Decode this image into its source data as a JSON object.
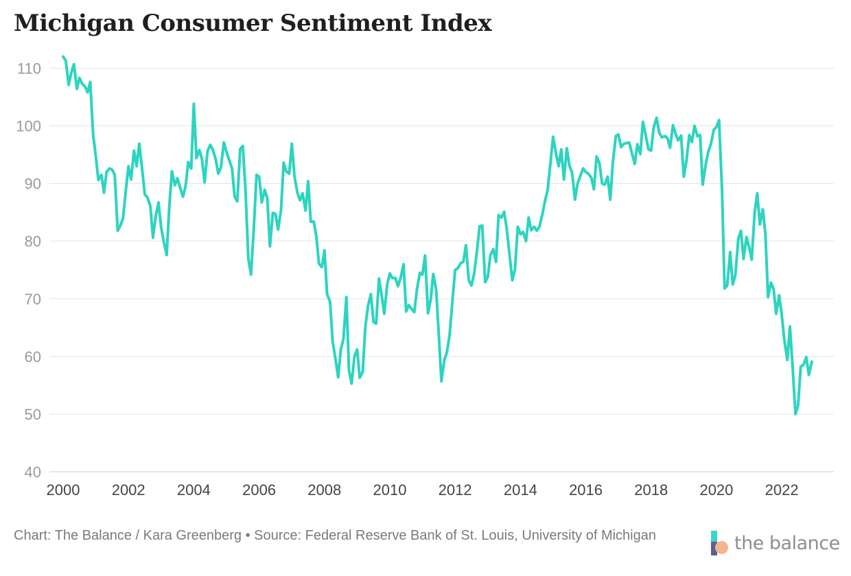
{
  "chart_data": {
    "type": "line",
    "title": "Michigan Consumer Sentiment Index",
    "xlabel": "",
    "ylabel": "",
    "xlim": [
      2000,
      2023.3
    ],
    "ylim": [
      40,
      112
    ],
    "x_ticks": [
      2000,
      2002,
      2004,
      2006,
      2008,
      2010,
      2012,
      2014,
      2016,
      2018,
      2020,
      2022
    ],
    "y_ticks": [
      40,
      50,
      60,
      70,
      80,
      90,
      100,
      110
    ],
    "grid": true,
    "series": [
      {
        "name": "Michigan Consumer Sentiment Index",
        "color": "#2dd4bf",
        "x": [
          2000.0,
          2000.08,
          2000.17,
          2000.25,
          2000.33,
          2000.42,
          2000.5,
          2000.58,
          2000.67,
          2000.75,
          2000.83,
          2000.92,
          2001.0,
          2001.08,
          2001.17,
          2001.25,
          2001.33,
          2001.42,
          2001.5,
          2001.58,
          2001.67,
          2001.75,
          2001.83,
          2001.92,
          2002.0,
          2002.08,
          2002.17,
          2002.25,
          2002.33,
          2002.42,
          2002.5,
          2002.58,
          2002.67,
          2002.75,
          2002.83,
          2002.92,
          2003.0,
          2003.08,
          2003.17,
          2003.25,
          2003.33,
          2003.42,
          2003.5,
          2003.58,
          2003.67,
          2003.75,
          2003.83,
          2003.92,
          2004.0,
          2004.08,
          2004.17,
          2004.25,
          2004.33,
          2004.42,
          2004.5,
          2004.58,
          2004.67,
          2004.75,
          2004.83,
          2004.92,
          2005.0,
          2005.08,
          2005.17,
          2005.25,
          2005.33,
          2005.42,
          2005.5,
          2005.58,
          2005.67,
          2005.75,
          2005.83,
          2005.92,
          2006.0,
          2006.08,
          2006.17,
          2006.25,
          2006.33,
          2006.42,
          2006.5,
          2006.58,
          2006.67,
          2006.75,
          2006.83,
          2006.92,
          2007.0,
          2007.08,
          2007.17,
          2007.25,
          2007.33,
          2007.42,
          2007.5,
          2007.58,
          2007.67,
          2007.75,
          2007.83,
          2007.92,
          2008.0,
          2008.08,
          2008.17,
          2008.25,
          2008.33,
          2008.42,
          2008.5,
          2008.58,
          2008.67,
          2008.75,
          2008.83,
          2008.92,
          2009.0,
          2009.08,
          2009.17,
          2009.25,
          2009.33,
          2009.42,
          2009.5,
          2009.58,
          2009.67,
          2009.75,
          2009.83,
          2009.92,
          2010.0,
          2010.08,
          2010.17,
          2010.25,
          2010.33,
          2010.42,
          2010.5,
          2010.58,
          2010.67,
          2010.75,
          2010.83,
          2010.92,
          2011.0,
          2011.08,
          2011.17,
          2011.25,
          2011.33,
          2011.42,
          2011.5,
          2011.58,
          2011.67,
          2011.75,
          2011.83,
          2011.92,
          2012.0,
          2012.08,
          2012.17,
          2012.25,
          2012.33,
          2012.42,
          2012.5,
          2012.58,
          2012.67,
          2012.75,
          2012.83,
          2012.92,
          2013.0,
          2013.08,
          2013.17,
          2013.25,
          2013.33,
          2013.42,
          2013.5,
          2013.58,
          2013.67,
          2013.75,
          2013.83,
          2013.92,
          2014.0,
          2014.08,
          2014.17,
          2014.25,
          2014.33,
          2014.42,
          2014.5,
          2014.58,
          2014.67,
          2014.75,
          2014.83,
          2014.92,
          2015.0,
          2015.08,
          2015.17,
          2015.25,
          2015.33,
          2015.42,
          2015.5,
          2015.58,
          2015.67,
          2015.75,
          2015.83,
          2015.92,
          2016.0,
          2016.08,
          2016.17,
          2016.25,
          2016.33,
          2016.42,
          2016.5,
          2016.58,
          2016.67,
          2016.75,
          2016.83,
          2016.92,
          2017.0,
          2017.08,
          2017.17,
          2017.25,
          2017.33,
          2017.42,
          2017.5,
          2017.58,
          2017.67,
          2017.75,
          2017.83,
          2017.92,
          2018.0,
          2018.08,
          2018.17,
          2018.25,
          2018.33,
          2018.42,
          2018.5,
          2018.58,
          2018.67,
          2018.75,
          2018.83,
          2018.92,
          2019.0,
          2019.08,
          2019.17,
          2019.25,
          2019.33,
          2019.42,
          2019.5,
          2019.58,
          2019.67,
          2019.75,
          2019.83,
          2019.92,
          2020.0,
          2020.08,
          2020.17,
          2020.25,
          2020.33,
          2020.42,
          2020.5,
          2020.58,
          2020.67,
          2020.75,
          2020.83,
          2020.92,
          2021.0,
          2021.08,
          2021.17,
          2021.25,
          2021.33,
          2021.42,
          2021.5,
          2021.58,
          2021.67,
          2021.75,
          2021.83,
          2021.92,
          2022.0,
          2022.08,
          2022.17,
          2022.25,
          2022.33,
          2022.42,
          2022.5,
          2022.58,
          2022.67,
          2022.75,
          2022.83,
          2022.92
        ],
        "y": [
          112.0,
          111.3,
          107.1,
          109.2,
          110.7,
          106.4,
          108.3,
          107.3,
          106.8,
          105.8,
          107.6,
          98.4,
          94.7,
          90.6,
          91.5,
          88.4,
          92.0,
          92.6,
          92.4,
          91.5,
          81.8,
          82.7,
          83.9,
          88.8,
          93.0,
          90.7,
          95.7,
          93.0,
          96.9,
          92.4,
          88.1,
          87.6,
          86.1,
          80.6,
          84.2,
          86.7,
          82.4,
          79.9,
          77.6,
          86.0,
          92.1,
          89.7,
          90.9,
          89.3,
          87.7,
          89.6,
          93.7,
          92.6,
          103.8,
          94.4,
          95.8,
          94.2,
          90.2,
          95.6,
          96.7,
          95.9,
          94.2,
          91.7,
          92.8,
          97.1,
          95.5,
          94.1,
          92.6,
          87.7,
          86.9,
          96.0,
          96.5,
          89.1,
          76.9,
          74.2,
          81.6,
          91.5,
          91.2,
          86.7,
          88.9,
          87.4,
          79.1,
          84.9,
          84.7,
          82.0,
          85.4,
          93.6,
          92.1,
          91.7,
          96.9,
          91.3,
          88.4,
          87.1,
          88.3,
          85.3,
          90.4,
          83.4,
          83.4,
          80.9,
          76.1,
          75.5,
          78.4,
          70.8,
          69.5,
          62.6,
          59.8,
          56.4,
          61.2,
          63.0,
          70.3,
          57.6,
          55.3,
          60.1,
          61.2,
          56.3,
          57.3,
          65.1,
          68.7,
          70.8,
          66.0,
          65.7,
          73.5,
          70.6,
          67.4,
          72.5,
          74.4,
          73.6,
          73.6,
          72.2,
          73.6,
          76.0,
          67.8,
          68.9,
          68.2,
          67.7,
          71.6,
          74.5,
          74.2,
          77.5,
          67.5,
          69.8,
          74.3,
          71.5,
          63.7,
          55.7,
          59.4,
          60.8,
          63.7,
          69.9,
          75.0,
          75.3,
          76.2,
          76.4,
          79.3,
          73.2,
          72.3,
          74.3,
          78.3,
          82.6,
          82.7,
          72.9,
          73.8,
          77.6,
          78.6,
          76.4,
          84.5,
          84.1,
          85.1,
          82.1,
          77.5,
          73.2,
          75.1,
          82.5,
          81.2,
          81.6,
          80.0,
          84.1,
          81.9,
          82.5,
          81.8,
          82.5,
          84.6,
          86.9,
          88.8,
          93.6,
          98.1,
          95.4,
          93.0,
          95.9,
          90.7,
          96.1,
          93.1,
          91.9,
          87.2,
          90.0,
          91.3,
          92.6,
          92.0,
          91.7,
          91.0,
          89.0,
          94.7,
          93.5,
          90.0,
          89.8,
          91.2,
          87.2,
          93.8,
          98.2,
          98.5,
          96.3,
          96.9,
          97.0,
          97.1,
          95.1,
          93.4,
          96.8,
          95.1,
          100.7,
          98.5,
          95.9,
          95.7,
          99.7,
          101.4,
          98.8,
          98.0,
          98.2,
          97.9,
          96.2,
          100.1,
          98.6,
          97.5,
          98.3,
          91.2,
          93.8,
          98.4,
          97.2,
          100.0,
          98.2,
          98.4,
          89.8,
          93.2,
          95.5,
          96.8,
          99.3,
          99.8,
          101.0,
          89.1,
          71.8,
          72.3,
          78.1,
          72.5,
          74.1,
          80.4,
          81.8,
          76.9,
          80.7,
          79.0,
          76.8,
          84.9,
          88.3,
          82.9,
          85.5,
          81.2,
          70.3,
          72.8,
          71.7,
          67.4,
          70.6,
          67.2,
          62.8,
          59.4,
          65.2,
          58.4,
          50.0,
          51.5,
          58.2,
          58.6,
          59.9,
          56.8,
          59.1
        ]
      }
    ]
  },
  "caption": "Chart: The Balance / Kara Greenberg • Source: Federal Reserve Bank of St. Louis, University of Michigan",
  "brand": {
    "text": "the balance",
    "icon": "the-balance-logo"
  }
}
